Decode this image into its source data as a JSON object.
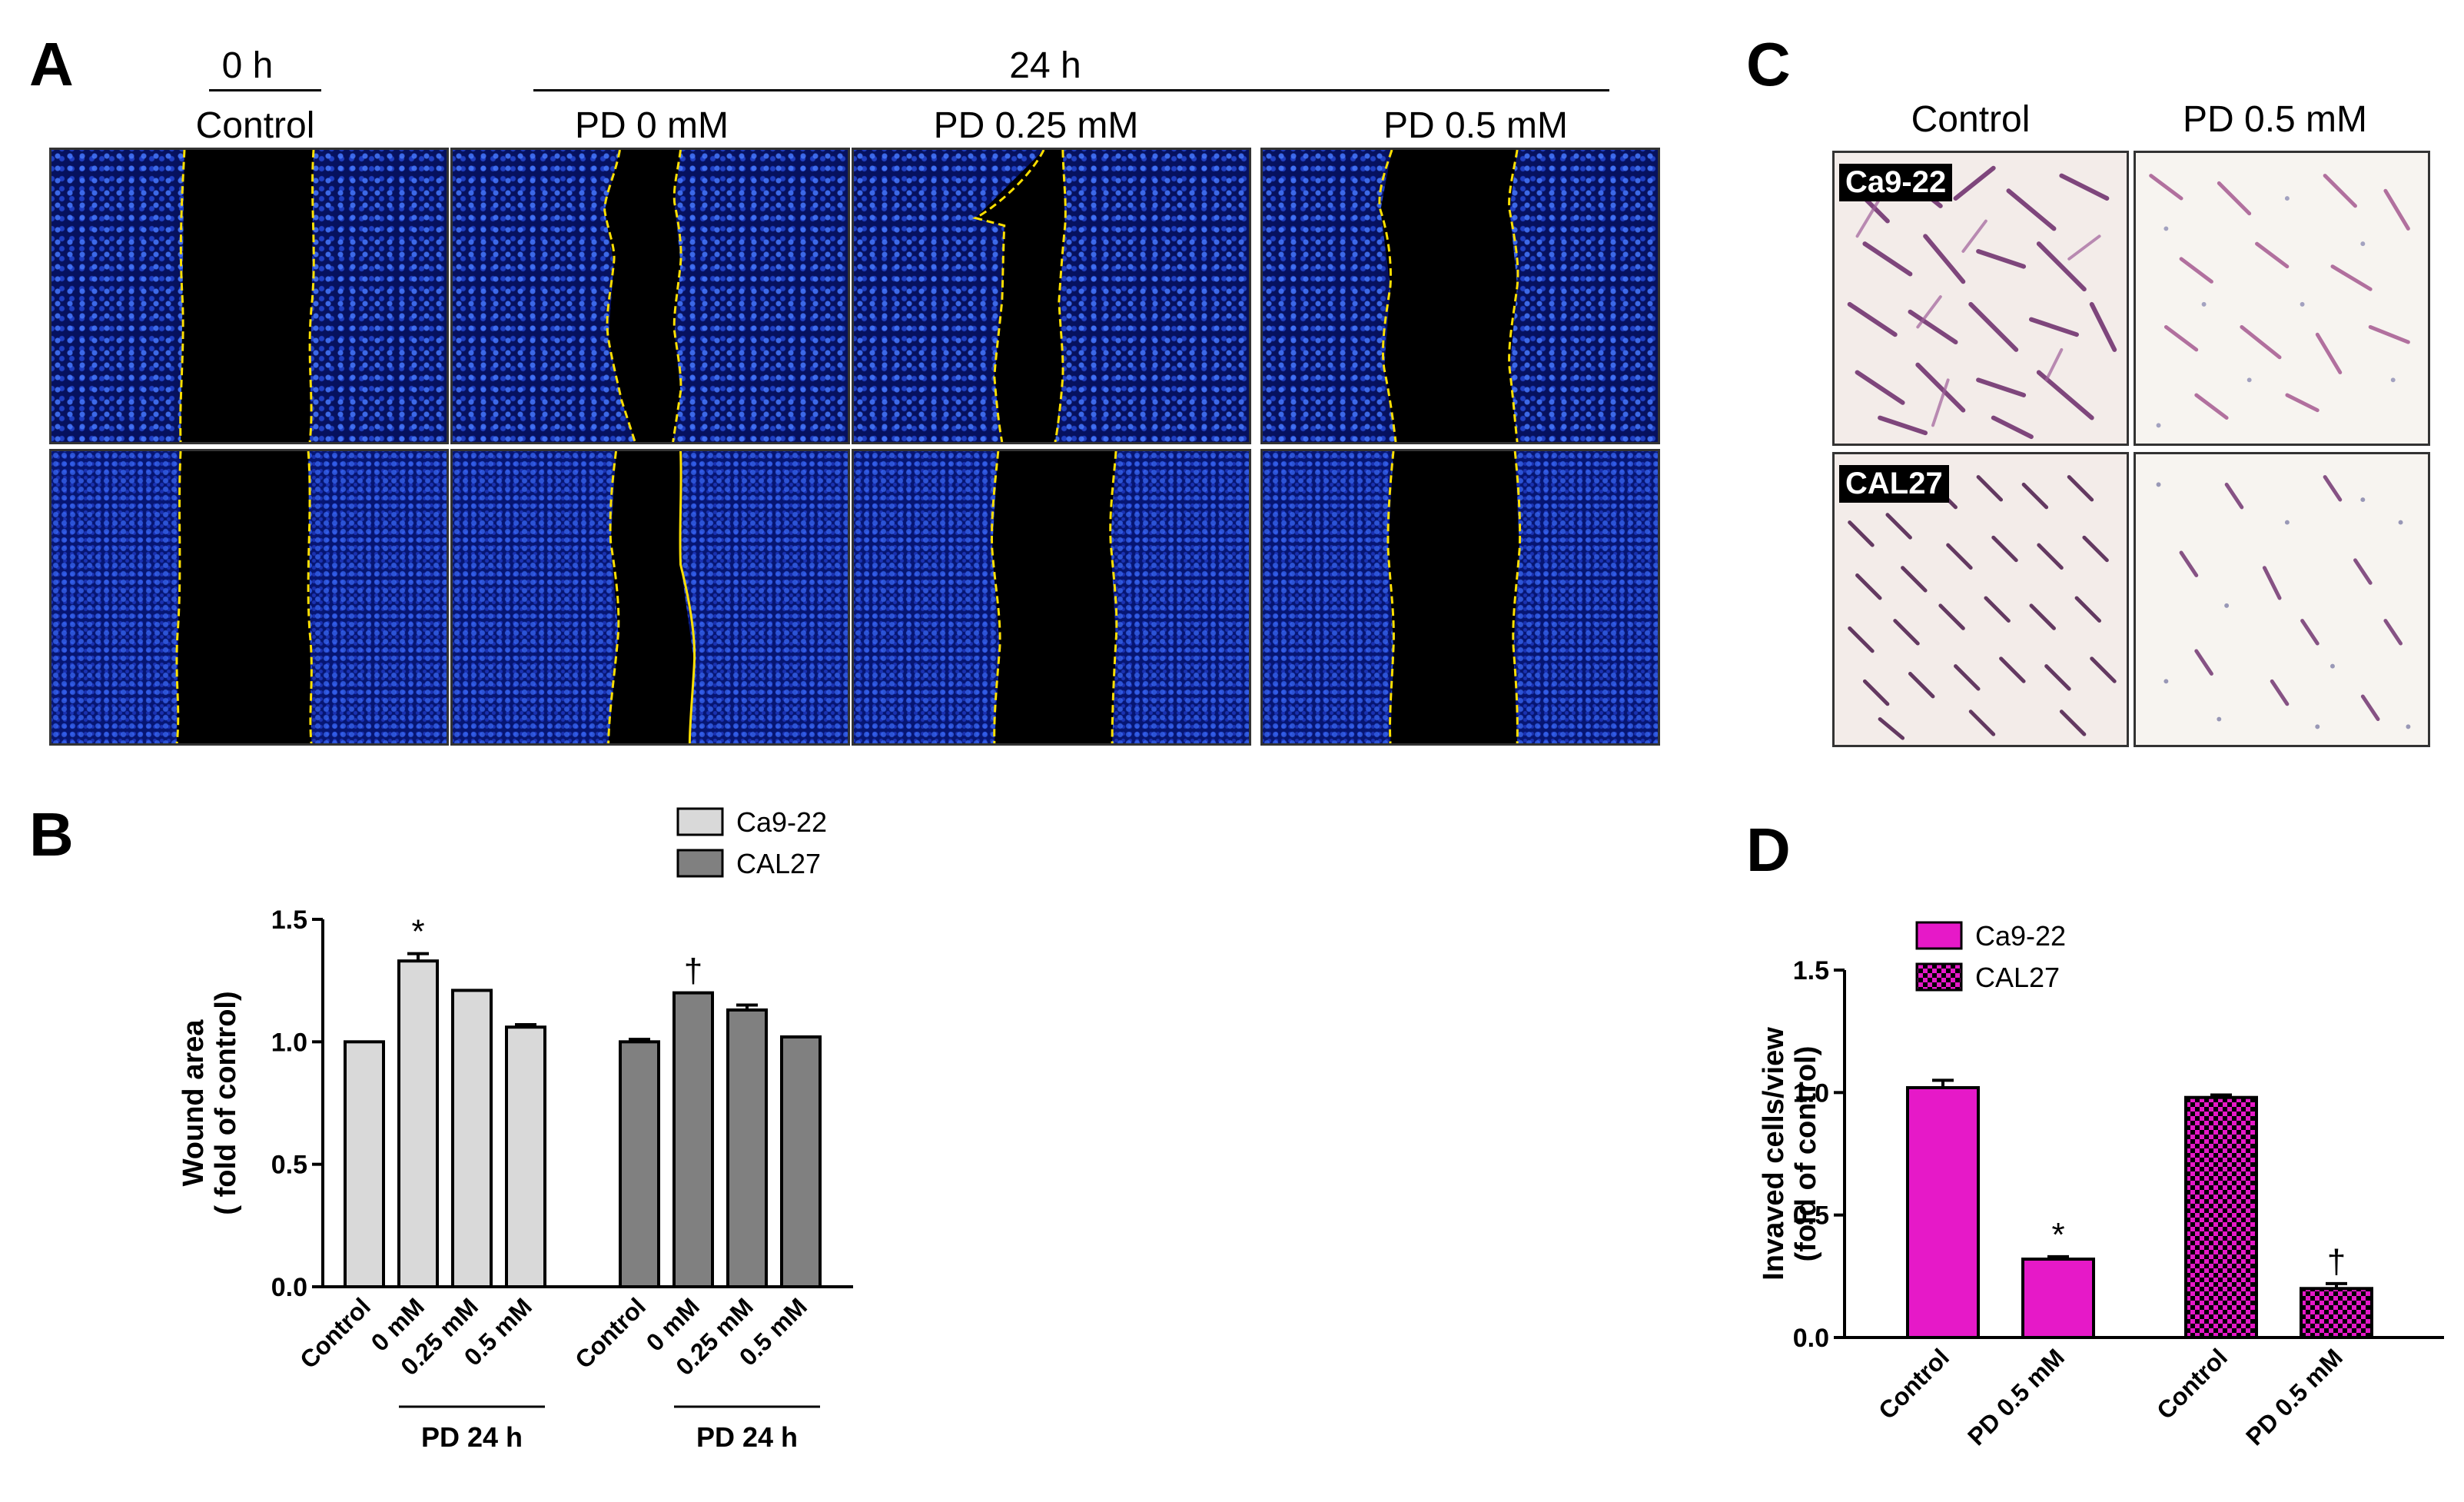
{
  "panels": {
    "a": "A",
    "b": "B",
    "c": "C",
    "d": "D"
  },
  "panel_a": {
    "time_0": "0 h",
    "time_24": "24 h",
    "col_labels": [
      "Control",
      "PD  0 mM",
      "PD  0.25 mM",
      "PD  0.5 mM"
    ]
  },
  "panel_c": {
    "col_labels": [
      "Control",
      "PD 0.5 mM"
    ],
    "row_labels": [
      "Ca9-22",
      "CAL27"
    ]
  },
  "colors": {
    "ca922_b": "#d9d9d9",
    "cal27_b": "#808080",
    "ca922_d": "#e619c8",
    "cal27_d_pattern": "#cc00cc",
    "wound_edge": "#ffe000"
  },
  "icons": [
    "microscopy-image",
    "yellow-wound-edge"
  ],
  "chart_data": [
    {
      "type": "bar",
      "panel": "B",
      "ylabel": "Wound area\n( fold of control)",
      "ylabel_lines": [
        "Wound area",
        "( fold of control)"
      ],
      "ylim": [
        0,
        1.5
      ],
      "yticks": [
        "0.0",
        "0.5",
        "1.0",
        "1.5"
      ],
      "groups": [
        {
          "name": "Ca9-22",
          "categories": [
            "Control",
            "0 mM",
            "0.25 mM",
            "0.5 mM"
          ],
          "values": [
            1.0,
            1.33,
            1.21,
            1.06
          ],
          "errors": [
            0.0,
            0.03,
            0.0,
            0.01
          ],
          "annotations": [
            "",
            "*",
            "",
            ""
          ],
          "sub_label": "PD  24  h"
        },
        {
          "name": "CAL27",
          "categories": [
            "Control",
            "0 mM",
            "0.25 mM",
            "0.5 mM"
          ],
          "values": [
            1.0,
            1.2,
            1.13,
            1.02
          ],
          "errors": [
            0.01,
            0.0,
            0.02,
            0.0
          ],
          "annotations": [
            "",
            "†",
            "",
            ""
          ],
          "sub_label": "PD  24  h"
        }
      ],
      "legend": [
        "Ca9-22",
        "CAL27"
      ],
      "legend_position": "top"
    },
    {
      "type": "bar",
      "panel": "D",
      "ylabel": "Invaved cells/view\n(fold of control)",
      "ylabel_lines": [
        "Invaved cells/view",
        "(fold of control)"
      ],
      "ylim": [
        0,
        1.5
      ],
      "yticks": [
        "0.0",
        "0.5",
        "1.0",
        "1.5"
      ],
      "groups": [
        {
          "name": "Ca9-22",
          "categories": [
            "Control",
            "PD 0.5 mM"
          ],
          "values": [
            1.02,
            0.32
          ],
          "errors": [
            0.03,
            0.01
          ],
          "annotations": [
            "",
            "*"
          ]
        },
        {
          "name": "CAL27",
          "categories": [
            "Control",
            "PD 0.5 mM"
          ],
          "values": [
            0.98,
            0.2
          ],
          "errors": [
            0.01,
            0.02
          ],
          "annotations": [
            "",
            "†"
          ]
        }
      ],
      "legend": [
        "Ca9-22",
        "CAL27"
      ],
      "legend_position": "top-left"
    }
  ]
}
